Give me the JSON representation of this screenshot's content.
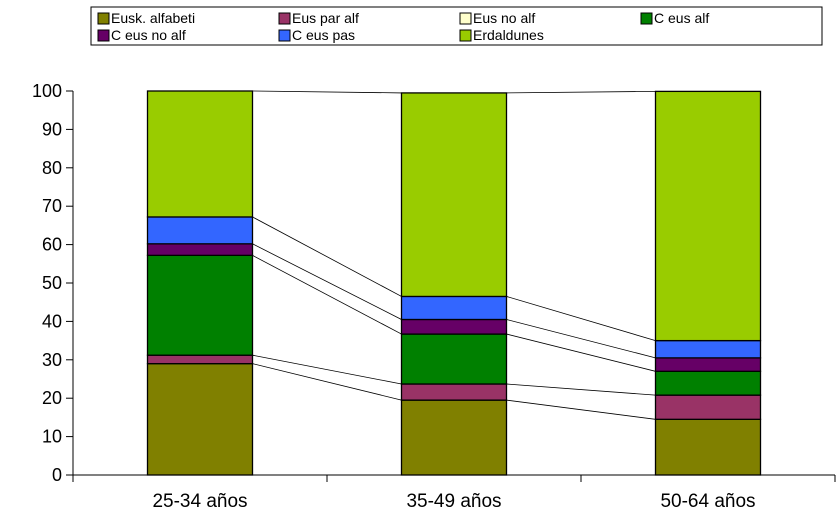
{
  "chart_data": {
    "type": "bar",
    "stacked": true,
    "categories": [
      "25-34 años",
      "35-49 años",
      "50-64 años"
    ],
    "series": [
      {
        "name": "Eusk. alfabeti",
        "color": "#808000",
        "values": [
          29,
          19.5,
          14.5
        ]
      },
      {
        "name": "Eus par alf",
        "color": "#993366",
        "values": [
          2.2,
          4.2,
          6.3
        ]
      },
      {
        "name": "Eus no alf",
        "color": "#FFFFCC",
        "values": [
          0,
          0,
          0
        ]
      },
      {
        "name": "C eus alf",
        "color": "#008000",
        "values": [
          26,
          13,
          6.2
        ]
      },
      {
        "name": "C eus no alf",
        "color": "#660066",
        "values": [
          3,
          3.8,
          3.5
        ]
      },
      {
        "name": "C eus pas",
        "color": "#3366FF",
        "values": [
          7,
          6,
          4.5
        ]
      },
      {
        "name": "Erdaldunes",
        "color": "#99CC00",
        "values": [
          32.8,
          53,
          64.9
        ]
      }
    ],
    "ylim": [
      0,
      100
    ],
    "yticks": [
      "0",
      "10",
      "20",
      "30",
      "40",
      "50",
      "60",
      "70",
      "80",
      "90",
      "100"
    ],
    "legend_position": "top",
    "grid": false,
    "series_connector_lines": true
  }
}
